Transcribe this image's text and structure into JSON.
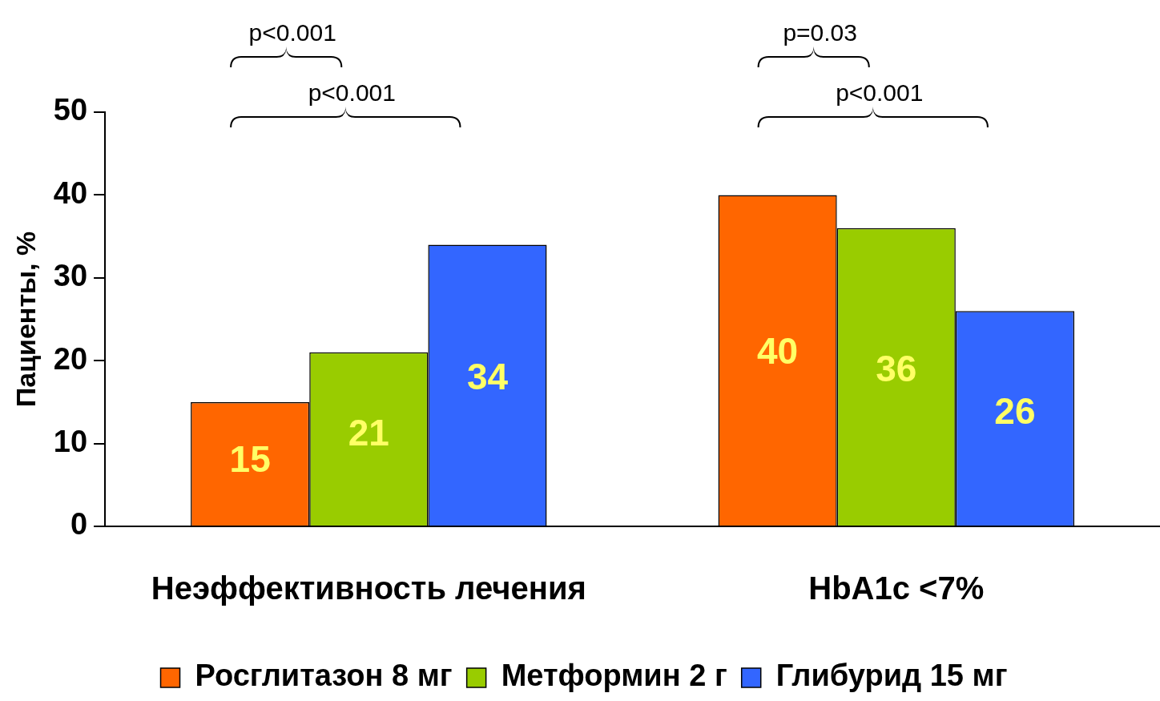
{
  "chart_data": {
    "type": "bar",
    "ylabel": "Пациенты, %",
    "categories": [
      "Неэффективность лечения",
      "HbA1c <7%"
    ],
    "series": [
      {
        "name": "Росглитазон 8 мг",
        "color": "#ff6600",
        "values": [
          15,
          40
        ]
      },
      {
        "name": "Метформин 2 г",
        "color": "#99cc00",
        "values": [
          21,
          36
        ]
      },
      {
        "name": "Глибурид 15 мг",
        "color": "#3366ff",
        "values": [
          34,
          26
        ]
      }
    ],
    "ylim": [
      0,
      50
    ],
    "yticks": [
      0,
      10,
      20,
      30,
      40,
      50
    ],
    "legend": "bottom",
    "data_labels": true,
    "annotations": [
      "p<0.001",
      "p<0.001",
      "p=0.03",
      "p<0.001"
    ]
  }
}
